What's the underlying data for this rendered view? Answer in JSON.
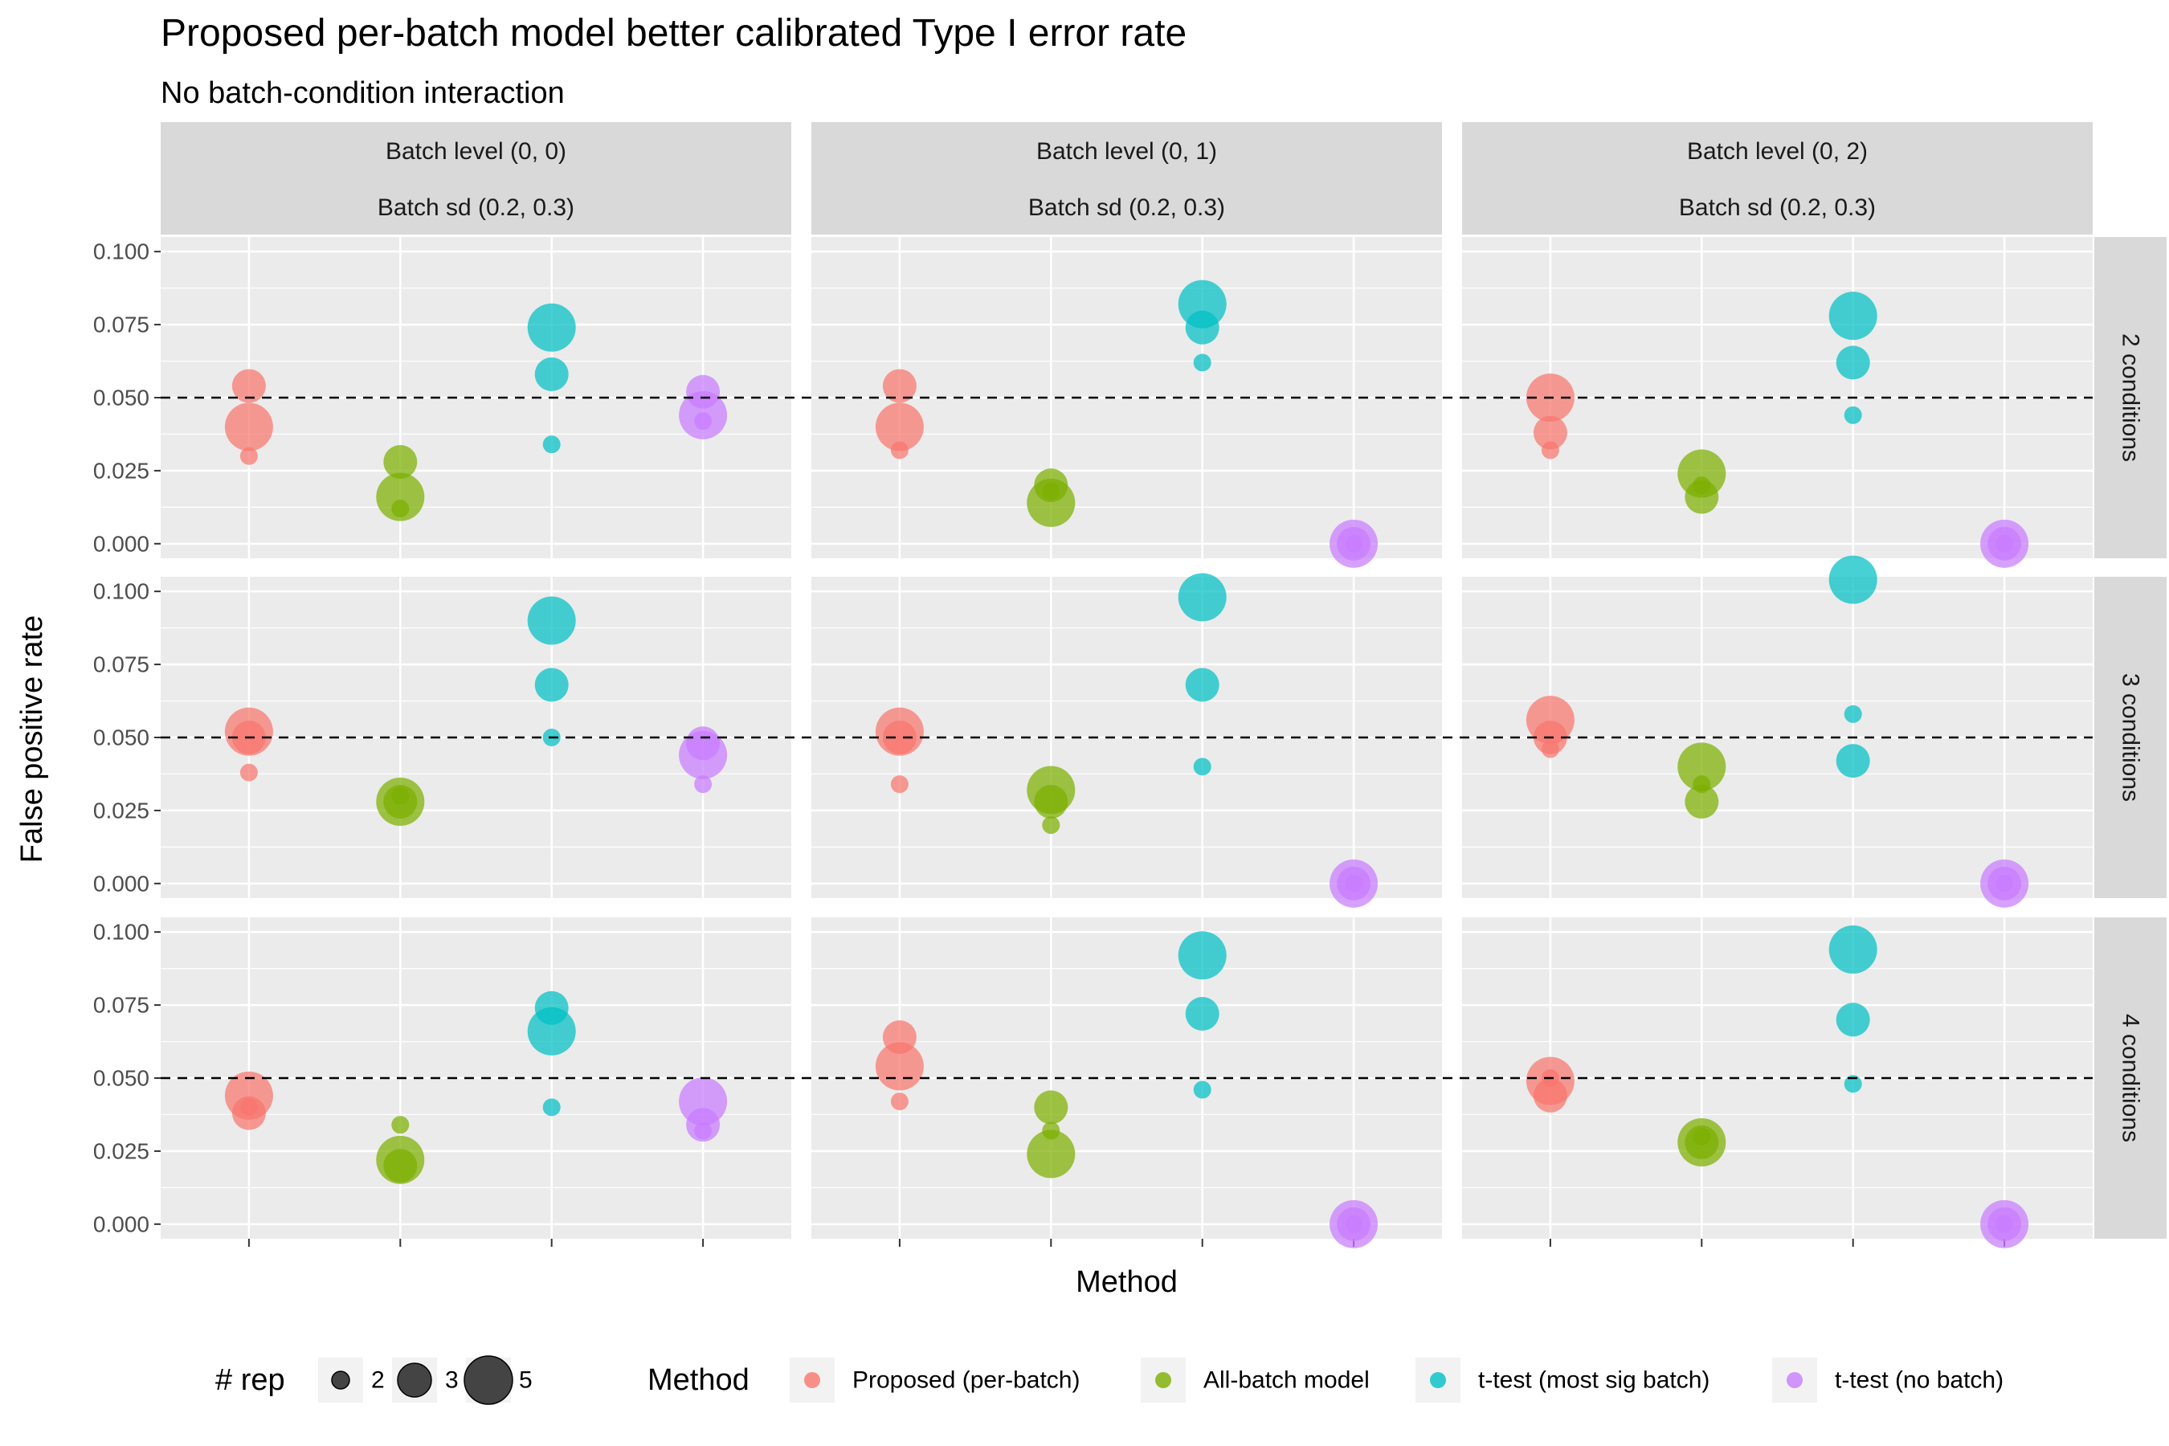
{
  "chart_data": {
    "type": "scatter",
    "title": "Proposed per-batch model better calibrated Type I error rate",
    "subtitle": "No batch-condition interaction",
    "xlabel": "Method",
    "ylabel": "False positive rate",
    "ylim": [
      -0.005,
      0.105
    ],
    "yticks": [
      "0.000",
      "0.025",
      "0.050",
      "0.075",
      "0.100"
    ],
    "reference_line": {
      "y": 0.05,
      "style": "dashed"
    },
    "grid": true,
    "legend_position": "bottom",
    "col_facets": [
      {
        "strip1": "Batch level (0, 0)",
        "strip2": "Batch sd (0.2, 0.3)"
      },
      {
        "strip1": "Batch level (0, 1)",
        "strip2": "Batch sd (0.2, 0.3)"
      },
      {
        "strip1": "Batch level (0, 2)",
        "strip2": "Batch sd (0.2, 0.3)"
      }
    ],
    "row_facets": [
      "2 conditions",
      "3 conditions",
      "4 conditions"
    ],
    "methods": [
      {
        "name": "Proposed (per-batch)",
        "color": "#F8766D"
      },
      {
        "name": "All-batch model",
        "color": "#7CAE00"
      },
      {
        "name": "t-test (most sig batch)",
        "color": "#00BFC4"
      },
      {
        "name": "t-test (no batch)",
        "color": "#C77CFF"
      }
    ],
    "size_legend": {
      "title": "# rep",
      "values": [
        2,
        3,
        5
      ]
    },
    "color_legend_title": "Method",
    "panels": [
      {
        "row": 0,
        "col": 0,
        "points": [
          {
            "m": 0,
            "y": 0.054,
            "rep": 3
          },
          {
            "m": 0,
            "y": 0.04,
            "rep": 5
          },
          {
            "m": 0,
            "y": 0.03,
            "rep": 2
          },
          {
            "m": 1,
            "y": 0.028,
            "rep": 3
          },
          {
            "m": 1,
            "y": 0.016,
            "rep": 5
          },
          {
            "m": 1,
            "y": 0.012,
            "rep": 2
          },
          {
            "m": 2,
            "y": 0.074,
            "rep": 5
          },
          {
            "m": 2,
            "y": 0.058,
            "rep": 3
          },
          {
            "m": 2,
            "y": 0.034,
            "rep": 2
          },
          {
            "m": 3,
            "y": 0.052,
            "rep": 3
          },
          {
            "m": 3,
            "y": 0.044,
            "rep": 5
          },
          {
            "m": 3,
            "y": 0.042,
            "rep": 2
          }
        ]
      },
      {
        "row": 0,
        "col": 1,
        "points": [
          {
            "m": 0,
            "y": 0.054,
            "rep": 3
          },
          {
            "m": 0,
            "y": 0.04,
            "rep": 5
          },
          {
            "m": 0,
            "y": 0.032,
            "rep": 2
          },
          {
            "m": 1,
            "y": 0.02,
            "rep": 3
          },
          {
            "m": 1,
            "y": 0.014,
            "rep": 5
          },
          {
            "m": 1,
            "y": 0.018,
            "rep": 2
          },
          {
            "m": 2,
            "y": 0.082,
            "rep": 5
          },
          {
            "m": 2,
            "y": 0.074,
            "rep": 3
          },
          {
            "m": 2,
            "y": 0.062,
            "rep": 2
          },
          {
            "m": 3,
            "y": 0.0,
            "rep": 5
          },
          {
            "m": 3,
            "y": 0.0,
            "rep": 3
          },
          {
            "m": 3,
            "y": 0.0,
            "rep": 2
          }
        ]
      },
      {
        "row": 0,
        "col": 2,
        "points": [
          {
            "m": 0,
            "y": 0.05,
            "rep": 5
          },
          {
            "m": 0,
            "y": 0.038,
            "rep": 3
          },
          {
            "m": 0,
            "y": 0.032,
            "rep": 2
          },
          {
            "m": 1,
            "y": 0.024,
            "rep": 5
          },
          {
            "m": 1,
            "y": 0.016,
            "rep": 3
          },
          {
            "m": 1,
            "y": 0.02,
            "rep": 2
          },
          {
            "m": 2,
            "y": 0.078,
            "rep": 5
          },
          {
            "m": 2,
            "y": 0.062,
            "rep": 3
          },
          {
            "m": 2,
            "y": 0.044,
            "rep": 2
          },
          {
            "m": 3,
            "y": 0.0,
            "rep": 5
          },
          {
            "m": 3,
            "y": 0.0,
            "rep": 3
          },
          {
            "m": 3,
            "y": 0.0,
            "rep": 2
          }
        ]
      },
      {
        "row": 1,
        "col": 0,
        "points": [
          {
            "m": 0,
            "y": 0.052,
            "rep": 5
          },
          {
            "m": 0,
            "y": 0.05,
            "rep": 3
          },
          {
            "m": 0,
            "y": 0.038,
            "rep": 2
          },
          {
            "m": 1,
            "y": 0.028,
            "rep": 5
          },
          {
            "m": 1,
            "y": 0.028,
            "rep": 3
          },
          {
            "m": 1,
            "y": 0.03,
            "rep": 2
          },
          {
            "m": 2,
            "y": 0.09,
            "rep": 5
          },
          {
            "m": 2,
            "y": 0.068,
            "rep": 3
          },
          {
            "m": 2,
            "y": 0.05,
            "rep": 2
          },
          {
            "m": 3,
            "y": 0.048,
            "rep": 3
          },
          {
            "m": 3,
            "y": 0.044,
            "rep": 5
          },
          {
            "m": 3,
            "y": 0.034,
            "rep": 2
          }
        ]
      },
      {
        "row": 1,
        "col": 1,
        "points": [
          {
            "m": 0,
            "y": 0.052,
            "rep": 5
          },
          {
            "m": 0,
            "y": 0.05,
            "rep": 3
          },
          {
            "m": 0,
            "y": 0.034,
            "rep": 2
          },
          {
            "m": 1,
            "y": 0.032,
            "rep": 5
          },
          {
            "m": 1,
            "y": 0.028,
            "rep": 3
          },
          {
            "m": 1,
            "y": 0.02,
            "rep": 2
          },
          {
            "m": 2,
            "y": 0.098,
            "rep": 5
          },
          {
            "m": 2,
            "y": 0.068,
            "rep": 3
          },
          {
            "m": 2,
            "y": 0.04,
            "rep": 2
          },
          {
            "m": 3,
            "y": 0.0,
            "rep": 5
          },
          {
            "m": 3,
            "y": 0.0,
            "rep": 3
          },
          {
            "m": 3,
            "y": 0.0,
            "rep": 2
          }
        ]
      },
      {
        "row": 1,
        "col": 2,
        "points": [
          {
            "m": 0,
            "y": 0.056,
            "rep": 5
          },
          {
            "m": 0,
            "y": 0.05,
            "rep": 3
          },
          {
            "m": 0,
            "y": 0.046,
            "rep": 2
          },
          {
            "m": 1,
            "y": 0.04,
            "rep": 5
          },
          {
            "m": 1,
            "y": 0.028,
            "rep": 3
          },
          {
            "m": 1,
            "y": 0.034,
            "rep": 2
          },
          {
            "m": 2,
            "y": 0.104,
            "rep": 5
          },
          {
            "m": 2,
            "y": 0.042,
            "rep": 3
          },
          {
            "m": 2,
            "y": 0.058,
            "rep": 2
          },
          {
            "m": 3,
            "y": 0.0,
            "rep": 5
          },
          {
            "m": 3,
            "y": 0.0,
            "rep": 3
          },
          {
            "m": 3,
            "y": 0.0,
            "rep": 2
          }
        ]
      },
      {
        "row": 2,
        "col": 0,
        "points": [
          {
            "m": 0,
            "y": 0.044,
            "rep": 5
          },
          {
            "m": 0,
            "y": 0.038,
            "rep": 3
          },
          {
            "m": 0,
            "y": 0.04,
            "rep": 2
          },
          {
            "m": 1,
            "y": 0.022,
            "rep": 5
          },
          {
            "m": 1,
            "y": 0.02,
            "rep": 3
          },
          {
            "m": 1,
            "y": 0.034,
            "rep": 2
          },
          {
            "m": 2,
            "y": 0.066,
            "rep": 5
          },
          {
            "m": 2,
            "y": 0.074,
            "rep": 3
          },
          {
            "m": 2,
            "y": 0.04,
            "rep": 2
          },
          {
            "m": 3,
            "y": 0.042,
            "rep": 5
          },
          {
            "m": 3,
            "y": 0.034,
            "rep": 3
          },
          {
            "m": 3,
            "y": 0.032,
            "rep": 2
          }
        ]
      },
      {
        "row": 2,
        "col": 1,
        "points": [
          {
            "m": 0,
            "y": 0.054,
            "rep": 5
          },
          {
            "m": 0,
            "y": 0.064,
            "rep": 3
          },
          {
            "m": 0,
            "y": 0.042,
            "rep": 2
          },
          {
            "m": 1,
            "y": 0.024,
            "rep": 5
          },
          {
            "m": 1,
            "y": 0.04,
            "rep": 3
          },
          {
            "m": 1,
            "y": 0.032,
            "rep": 2
          },
          {
            "m": 2,
            "y": 0.092,
            "rep": 5
          },
          {
            "m": 2,
            "y": 0.072,
            "rep": 3
          },
          {
            "m": 2,
            "y": 0.046,
            "rep": 2
          },
          {
            "m": 3,
            "y": 0.0,
            "rep": 5
          },
          {
            "m": 3,
            "y": 0.0,
            "rep": 3
          },
          {
            "m": 3,
            "y": 0.0,
            "rep": 2
          }
        ]
      },
      {
        "row": 2,
        "col": 2,
        "points": [
          {
            "m": 0,
            "y": 0.049,
            "rep": 5
          },
          {
            "m": 0,
            "y": 0.044,
            "rep": 3
          },
          {
            "m": 0,
            "y": 0.05,
            "rep": 2
          },
          {
            "m": 1,
            "y": 0.028,
            "rep": 5
          },
          {
            "m": 1,
            "y": 0.028,
            "rep": 3
          },
          {
            "m": 1,
            "y": 0.03,
            "rep": 2
          },
          {
            "m": 2,
            "y": 0.094,
            "rep": 5
          },
          {
            "m": 2,
            "y": 0.07,
            "rep": 3
          },
          {
            "m": 2,
            "y": 0.048,
            "rep": 2
          },
          {
            "m": 3,
            "y": 0.0,
            "rep": 5
          },
          {
            "m": 3,
            "y": 0.0,
            "rep": 3
          },
          {
            "m": 3,
            "y": 0.0,
            "rep": 2
          }
        ]
      }
    ]
  }
}
